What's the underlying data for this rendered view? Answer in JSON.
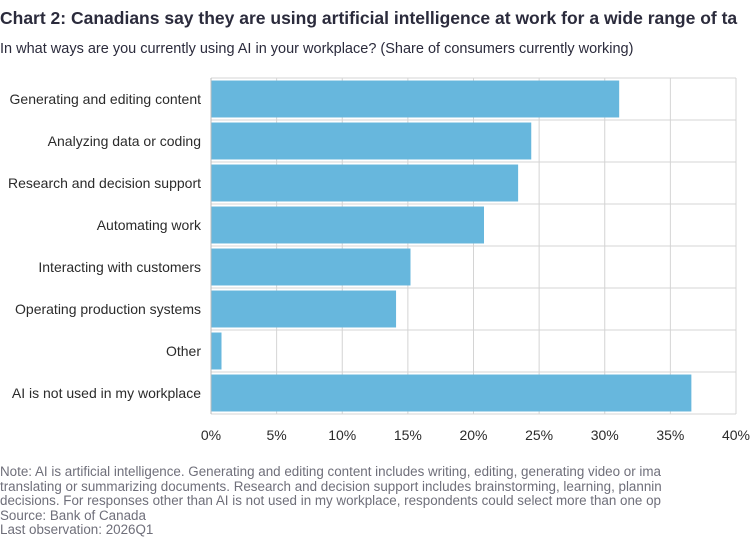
{
  "header": {
    "title": "Chart 2: Canadians say they are using artificial intelligence at work for a wide range of ta",
    "subtitle": "In what ways are you currently using AI in your workplace? (Share of consumers currently working)"
  },
  "chart_data": {
    "type": "bar",
    "orientation": "horizontal",
    "categories": [
      "Generating and editing content",
      "Analyzing data or coding",
      "Research and decision support",
      "Automating work",
      "Interacting with customers",
      "Operating production systems",
      "Other",
      "AI is not used in my workplace"
    ],
    "values": [
      31.1,
      24.4,
      23.4,
      20.8,
      15.2,
      14.1,
      0.8,
      36.6
    ],
    "xlim": [
      0,
      40
    ],
    "xticks": [
      0,
      5,
      10,
      15,
      20,
      25,
      30,
      35,
      40
    ],
    "tick_suffix": "%",
    "grid": true,
    "bar_color": "#67b7dd"
  },
  "footer": {
    "note_lines": [
      "Note: AI is artificial intelligence. Generating and editing content includes writing, editing, generating video or ima",
      "translating or summarizing documents. Research and decision support includes brainstorming, learning, plannin",
      "decisions. For responses other than AI is not used in my workplace, respondents could select more than one op"
    ],
    "source": "Source: Bank of Canada",
    "last_observation": "Last observation: 2026Q1"
  }
}
